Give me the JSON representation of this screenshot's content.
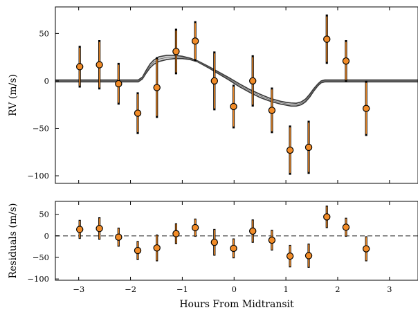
{
  "chart_data": [
    {
      "type": "scatter",
      "ylabel": "RV (m/s)",
      "xlabel": "",
      "xlim": [
        -3.45,
        3.55
      ],
      "ylim": [
        -108,
        78
      ],
      "xticks": [
        -3,
        -2,
        -1,
        0,
        1,
        2,
        3
      ],
      "xtick_labels": [],
      "yticks": [
        -100,
        -50,
        0,
        50
      ],
      "ytick_labels": [
        "−100",
        "−50",
        "0",
        "50"
      ],
      "points": [
        {
          "x": -2.98,
          "y": 15,
          "err": 20,
          "err_outer": 22
        },
        {
          "x": -2.6,
          "y": 17,
          "err": 24,
          "err_outer": 26
        },
        {
          "x": -2.23,
          "y": -3,
          "err": 20,
          "err_outer": 22
        },
        {
          "x": -1.86,
          "y": -34,
          "err": 20,
          "err_outer": 22
        },
        {
          "x": -1.49,
          "y": -7,
          "err": 30,
          "err_outer": 32
        },
        {
          "x": -1.12,
          "y": 31,
          "err": 22,
          "err_outer": 24
        },
        {
          "x": -0.75,
          "y": 42,
          "err": 19,
          "err_outer": 21
        },
        {
          "x": -0.38,
          "y": 0,
          "err": 29,
          "err_outer": 31
        },
        {
          "x": -0.01,
          "y": -27,
          "err": 21,
          "err_outer": 23
        },
        {
          "x": 0.36,
          "y": 0,
          "err": 25,
          "err_outer": 27
        },
        {
          "x": 0.73,
          "y": -31,
          "err": 22,
          "err_outer": 24
        },
        {
          "x": 1.08,
          "y": -73,
          "err": 24,
          "err_outer": 26
        },
        {
          "x": 1.44,
          "y": -70,
          "err": 26,
          "err_outer": 28
        },
        {
          "x": 1.79,
          "y": 44,
          "err": 24,
          "err_outer": 26
        },
        {
          "x": 2.16,
          "y": 21,
          "err": 20,
          "err_outer": 22
        },
        {
          "x": 2.55,
          "y": -29,
          "err": 27,
          "err_outer": 29
        }
      ],
      "model": {
        "x": [
          -3.45,
          -1.85,
          -1.77,
          -1.7,
          -1.62,
          -1.55,
          -1.45,
          -1.3,
          -1.15,
          -1.0,
          -0.85,
          -0.7,
          -0.5,
          -0.3,
          -0.1,
          0.1,
          0.3,
          0.5,
          0.7,
          0.9,
          1.0,
          1.1,
          1.2,
          1.3,
          1.38,
          1.46,
          1.54,
          1.62,
          1.68,
          1.75,
          1.85,
          3.55
        ],
        "upper": [
          1,
          1,
          4,
          11,
          18,
          22,
          25.5,
          27,
          27,
          26,
          24,
          21,
          15.5,
          9.5,
          3.5,
          -3,
          -9,
          -14,
          -18.5,
          -21.5,
          -22.5,
          -23.2,
          -23.5,
          -22,
          -19,
          -14,
          -8,
          -3,
          0,
          1,
          1,
          1
        ],
        "lower": [
          -1,
          -1,
          2,
          8,
          14,
          17.5,
          20.5,
          22.5,
          23.5,
          23.5,
          22.5,
          20,
          14,
          7.5,
          1,
          -6,
          -12,
          -17.5,
          -21.5,
          -24.5,
          -25.5,
          -26.5,
          -26.5,
          -25,
          -22,
          -17,
          -10.5,
          -5,
          -2,
          -1,
          -1,
          -1
        ]
      }
    },
    {
      "type": "scatter",
      "ylabel": "Residuals (m/s)",
      "xlabel": "Hours From Midtransit",
      "xlim": [
        -3.45,
        3.55
      ],
      "ylim": [
        -103,
        80
      ],
      "xticks": [
        -3,
        -2,
        -1,
        0,
        1,
        2,
        3
      ],
      "xtick_labels": [
        "−3",
        "−2",
        "−1",
        "0",
        "1",
        "2",
        "3"
      ],
      "yticks": [
        -100,
        -50,
        0,
        50
      ],
      "ytick_labels": [
        "−100",
        "−50",
        "0",
        "50"
      ],
      "reference_line": 0,
      "points": [
        {
          "x": -2.98,
          "y": 15,
          "err": 20,
          "err_outer": 22
        },
        {
          "x": -2.6,
          "y": 17,
          "err": 24,
          "err_outer": 26
        },
        {
          "x": -2.23,
          "y": -3,
          "err": 20,
          "err_outer": 22
        },
        {
          "x": -1.86,
          "y": -34,
          "err": 20,
          "err_outer": 22
        },
        {
          "x": -1.49,
          "y": -28,
          "err": 29,
          "err_outer": 31
        },
        {
          "x": -1.12,
          "y": 5,
          "err": 22,
          "err_outer": 24
        },
        {
          "x": -0.75,
          "y": 19,
          "err": 19,
          "err_outer": 21
        },
        {
          "x": -0.38,
          "y": -15,
          "err": 29,
          "err_outer": 31
        },
        {
          "x": -0.01,
          "y": -29,
          "err": 21,
          "err_outer": 23
        },
        {
          "x": 0.36,
          "y": 11,
          "err": 25,
          "err_outer": 27
        },
        {
          "x": 0.73,
          "y": -10,
          "err": 22,
          "err_outer": 24
        },
        {
          "x": 1.08,
          "y": -47,
          "err": 24,
          "err_outer": 26
        },
        {
          "x": 1.44,
          "y": -46,
          "err": 26,
          "err_outer": 28
        },
        {
          "x": 1.79,
          "y": 44,
          "err": 24,
          "err_outer": 26
        },
        {
          "x": 2.16,
          "y": 20,
          "err": 20,
          "err_outer": 22
        },
        {
          "x": 2.55,
          "y": -30,
          "err": 27,
          "err_outer": 29
        }
      ]
    }
  ],
  "colors": {
    "marker_fill": "#f28c28",
    "marker_edge": "#000000",
    "errorbar_inner": "#f28c28",
    "errorbar_outer": "#000000",
    "model_fill": "#cfcfcf",
    "model_edge": "#3a3a3a",
    "model_line": "#666666",
    "zero_line": "#777777"
  }
}
